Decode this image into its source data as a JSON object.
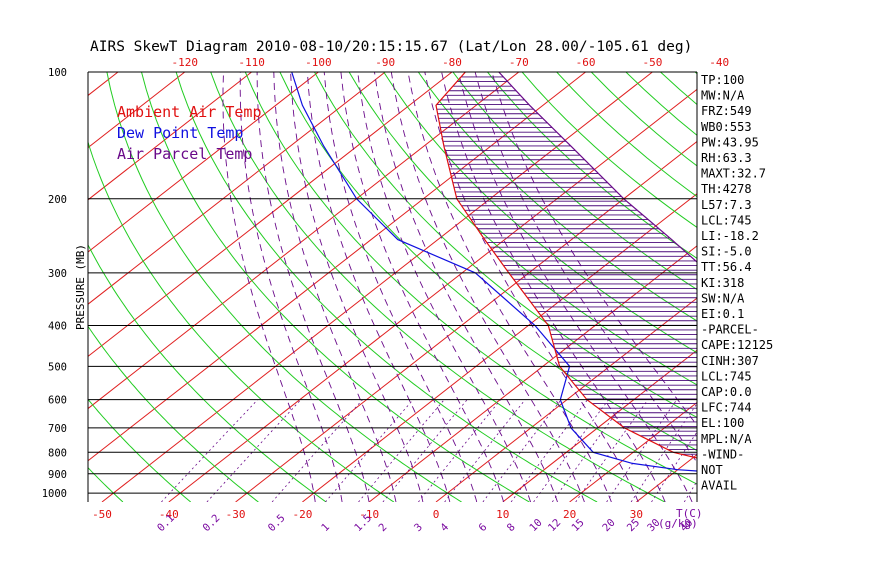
{
  "chart_data": {
    "type": "skewt",
    "title": "AIRS SkewT Diagram 2010-08-10/20:15:15.67 (Lat/Lon 28.00/-105.61 deg)",
    "ylabel": "PRESSURE (MB)",
    "x_bottom_unit": "T(C)",
    "mixing_ratio_unit": "(g/kg)",
    "legend": [
      {
        "label": "Ambient Air Temp",
        "color": "#e01010"
      },
      {
        "label": "Dew Point Temp",
        "color": "#1010e0"
      },
      {
        "label": "Air Parcel Temp",
        "color": "#6a0a8a"
      }
    ],
    "pressure_ticks": [
      100,
      200,
      300,
      400,
      500,
      600,
      700,
      800,
      900,
      1000
    ],
    "pressure_range": [
      100,
      1050
    ],
    "bottom_temp_ticks": [
      -50,
      -40,
      -30,
      -20,
      -10,
      0,
      10,
      20,
      30
    ],
    "top_temp_ticks": [
      -120,
      -110,
      -100,
      -90,
      -80,
      -70,
      -60,
      -50,
      -40
    ],
    "mixing_ratio_labels": [
      "0.1",
      "0.2",
      "0.5",
      "1",
      "1.5",
      "2",
      "3",
      "4",
      "6",
      "8",
      "10",
      "12",
      "15",
      "20",
      "25",
      "30",
      "40"
    ],
    "ambient_temp": [
      [
        1000,
        43
      ],
      [
        900,
        40
      ],
      [
        850,
        35
      ],
      [
        800,
        26
      ],
      [
        700,
        14
      ],
      [
        600,
        3
      ],
      [
        500,
        -7.5
      ],
      [
        400,
        -17
      ],
      [
        300,
        -33
      ],
      [
        250,
        -43
      ],
      [
        200,
        -55
      ],
      [
        150,
        -67
      ],
      [
        120,
        -76
      ],
      [
        100,
        -78
      ]
    ],
    "dew_point": [
      [
        900,
        40
      ],
      [
        880,
        30
      ],
      [
        850,
        22
      ],
      [
        800,
        14
      ],
      [
        700,
        6
      ],
      [
        600,
        -1
      ],
      [
        500,
        -6
      ],
      [
        400,
        -19
      ],
      [
        300,
        -38
      ],
      [
        250,
        -56
      ],
      [
        200,
        -70
      ],
      [
        150,
        -85
      ],
      [
        120,
        -96
      ],
      [
        100,
        -104
      ]
    ],
    "parcel_temp": [
      [
        850,
        38
      ],
      [
        800,
        35
      ],
      [
        700,
        32
      ],
      [
        600,
        27.5
      ],
      [
        500,
        21.5
      ],
      [
        400,
        12.5
      ],
      [
        300,
        -3
      ],
      [
        250,
        -15
      ],
      [
        200,
        -30
      ],
      [
        150,
        -48
      ],
      [
        120,
        -62
      ],
      [
        100,
        -73
      ]
    ],
    "indices": [
      "TP:100",
      "MW:N/A",
      "FRZ:549",
      "WB0:553",
      "PW:43.95",
      "RH:63.3",
      "MAXT:32.7",
      "TH:4278",
      "L57:7.3",
      "LCL:745",
      "LI:-18.2",
      "SI:-5.0",
      "TT:56.4",
      "KI:318",
      "SW:N/A",
      "EI:0.1",
      "-PARCEL-",
      "CAPE:12125",
      "CINH:307",
      "LCL:745",
      "CAP:0.0",
      "LFC:744",
      "EL:100",
      "MPL:N/A",
      "-WIND-",
      "NOT",
      "AVAIL"
    ],
    "colors": {
      "isotherm": "#e02020",
      "dry_adiabat": "#22cc22",
      "moist_adiabat": "#6a0a8a",
      "mixing_ratio": "#6a0a8a",
      "isobar": "#000000",
      "cape_hatch": "#4a0a7a",
      "axis_label_red": "#e01010",
      "axis_label_purple": "#7a0aa0",
      "text": "#000000"
    }
  }
}
